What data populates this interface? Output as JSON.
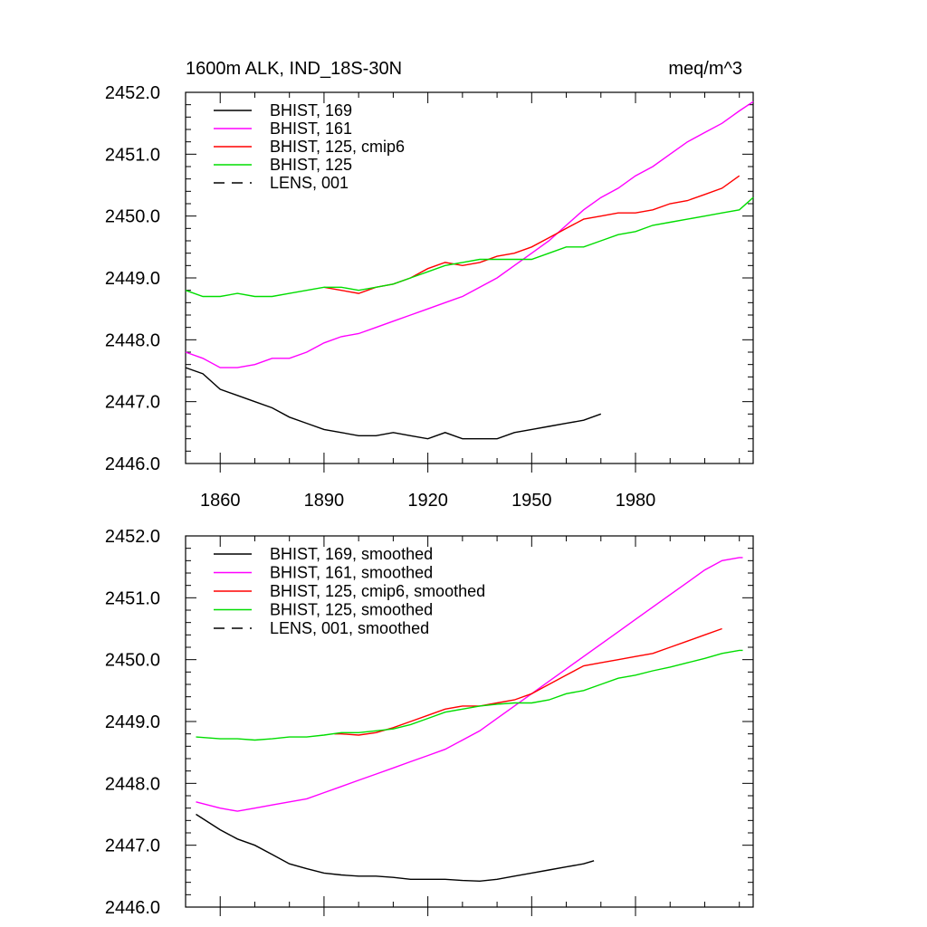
{
  "chart_data": [
    {
      "type": "line",
      "title_left": "1600m ALK, IND_18S-30N",
      "title_right": "meq/m^3",
      "xlabel": "",
      "ylabel": "",
      "xlim": [
        1850,
        2014
      ],
      "ylim": [
        2446.0,
        2452.0
      ],
      "x_ticks": [
        1860,
        1890,
        1920,
        1950,
        1980
      ],
      "x_tick_labels": [
        "1860",
        "1890",
        "1920",
        "1950",
        "1980"
      ],
      "y_ticks": [
        2446.0,
        2447.0,
        2448.0,
        2449.0,
        2450.0,
        2451.0,
        2452.0
      ],
      "y_tick_labels": [
        "2446.0",
        "2447.0",
        "2448.0",
        "2449.0",
        "2450.0",
        "2451.0",
        "2452.0"
      ],
      "grid": false,
      "legend_position": "top-left",
      "legend": [
        {
          "label": "BHIST, 169",
          "color": "#000000",
          "dash": "solid"
        },
        {
          "label": "BHIST, 161",
          "color": "#ff00ff",
          "dash": "solid"
        },
        {
          "label": "BHIST, 125, cmip6",
          "color": "#ff0000",
          "dash": "solid"
        },
        {
          "label": "BHIST, 125",
          "color": "#00dd00",
          "dash": "solid"
        },
        {
          "label": "LENS, 001",
          "color": "#000000",
          "dash": "dashed"
        }
      ],
      "series": [
        {
          "color": "#000000",
          "x": [
            1850,
            1855,
            1860,
            1865,
            1870,
            1875,
            1880,
            1885,
            1890,
            1895,
            1900,
            1905,
            1910,
            1915,
            1920,
            1925,
            1930,
            1935,
            1940,
            1945,
            1950,
            1955,
            1960,
            1965,
            1970
          ],
          "y": [
            2447.55,
            2447.45,
            2447.2,
            2447.1,
            2447.0,
            2446.9,
            2446.75,
            2446.65,
            2446.55,
            2446.5,
            2446.45,
            2446.45,
            2446.5,
            2446.45,
            2446.4,
            2446.5,
            2446.4,
            2446.4,
            2446.4,
            2446.5,
            2446.55,
            2446.6,
            2446.65,
            2446.7,
            2446.8
          ]
        },
        {
          "color": "#ff00ff",
          "x": [
            1850,
            1855,
            1860,
            1865,
            1870,
            1875,
            1880,
            1885,
            1890,
            1895,
            1900,
            1905,
            1910,
            1915,
            1920,
            1925,
            1930,
            1935,
            1940,
            1945,
            1950,
            1955,
            1960,
            1965,
            1970,
            1975,
            1980,
            1985,
            1990,
            1995,
            2000,
            2005,
            2010,
            2014
          ],
          "y": [
            2447.8,
            2447.7,
            2447.55,
            2447.55,
            2447.6,
            2447.7,
            2447.7,
            2447.8,
            2447.95,
            2448.05,
            2448.1,
            2448.2,
            2448.3,
            2448.4,
            2448.5,
            2448.6,
            2448.7,
            2448.85,
            2449.0,
            2449.2,
            2449.4,
            2449.6,
            2449.85,
            2450.1,
            2450.3,
            2450.45,
            2450.65,
            2450.8,
            2451.0,
            2451.2,
            2451.35,
            2451.5,
            2451.7,
            2451.85
          ]
        },
        {
          "color": "#ff0000",
          "x": [
            1890,
            1895,
            1900,
            1905,
            1910,
            1915,
            1920,
            1925,
            1930,
            1935,
            1940,
            1945,
            1950,
            1955,
            1960,
            1965,
            1970,
            1975,
            1980,
            1985,
            1990,
            1995,
            2000,
            2005,
            2010
          ],
          "y": [
            2448.85,
            2448.8,
            2448.75,
            2448.85,
            2448.9,
            2449.0,
            2449.15,
            2449.25,
            2449.2,
            2449.25,
            2449.35,
            2449.4,
            2449.5,
            2449.65,
            2449.8,
            2449.95,
            2450.0,
            2450.05,
            2450.05,
            2450.1,
            2450.2,
            2450.25,
            2450.35,
            2450.45,
            2450.65
          ]
        },
        {
          "color": "#00dd00",
          "x": [
            1850,
            1855,
            1860,
            1865,
            1870,
            1875,
            1880,
            1885,
            1890,
            1895,
            1900,
            1905,
            1910,
            1915,
            1920,
            1925,
            1930,
            1935,
            1940,
            1945,
            1950,
            1955,
            1960,
            1965,
            1970,
            1975,
            1980,
            1985,
            1990,
            1995,
            2000,
            2005,
            2010,
            2014
          ],
          "y": [
            2448.8,
            2448.7,
            2448.7,
            2448.75,
            2448.7,
            2448.7,
            2448.75,
            2448.8,
            2448.85,
            2448.85,
            2448.8,
            2448.85,
            2448.9,
            2449.0,
            2449.1,
            2449.2,
            2449.25,
            2449.3,
            2449.3,
            2449.3,
            2449.3,
            2449.4,
            2449.5,
            2449.5,
            2449.6,
            2449.7,
            2449.75,
            2449.85,
            2449.9,
            2449.95,
            2450.0,
            2450.05,
            2450.1,
            2450.3
          ]
        }
      ]
    },
    {
      "type": "line",
      "xlabel": "",
      "ylabel": "",
      "xlim": [
        1850,
        2014
      ],
      "ylim": [
        2446.0,
        2452.0
      ],
      "x_ticks": [
        1860,
        1890,
        1920,
        1950,
        1980
      ],
      "y_ticks": [
        2446.0,
        2447.0,
        2448.0,
        2449.0,
        2450.0,
        2451.0,
        2452.0
      ],
      "y_tick_labels": [
        "2446.0",
        "2447.0",
        "2448.0",
        "2449.0",
        "2450.0",
        "2451.0",
        "2452.0"
      ],
      "grid": false,
      "legend_position": "top-left",
      "legend": [
        {
          "label": "BHIST, 169, smoothed",
          "color": "#000000",
          "dash": "solid"
        },
        {
          "label": "BHIST, 161, smoothed",
          "color": "#ff00ff",
          "dash": "solid"
        },
        {
          "label": "BHIST, 125, cmip6, smoothed",
          "color": "#ff0000",
          "dash": "solid"
        },
        {
          "label": "BHIST, 125, smoothed",
          "color": "#00dd00",
          "dash": "solid"
        },
        {
          "label": "LENS, 001, smoothed",
          "color": "#000000",
          "dash": "dashed"
        }
      ],
      "series": [
        {
          "color": "#000000",
          "x": [
            1853,
            1860,
            1865,
            1870,
            1875,
            1880,
            1885,
            1890,
            1895,
            1900,
            1905,
            1910,
            1915,
            1920,
            1925,
            1930,
            1935,
            1940,
            1945,
            1950,
            1955,
            1960,
            1965,
            1968
          ],
          "y": [
            2447.5,
            2447.25,
            2447.1,
            2447.0,
            2446.85,
            2446.7,
            2446.62,
            2446.55,
            2446.52,
            2446.5,
            2446.5,
            2446.48,
            2446.45,
            2446.45,
            2446.45,
            2446.43,
            2446.42,
            2446.45,
            2446.5,
            2446.55,
            2446.6,
            2446.65,
            2446.7,
            2446.75
          ]
        },
        {
          "color": "#ff00ff",
          "x": [
            1853,
            1860,
            1865,
            1870,
            1875,
            1880,
            1885,
            1890,
            1895,
            1900,
            1905,
            1910,
            1915,
            1920,
            1925,
            1930,
            1935,
            1940,
            1945,
            1950,
            1955,
            1960,
            1965,
            1970,
            1975,
            1980,
            1985,
            1990,
            1995,
            2000,
            2005,
            2010,
            2011
          ],
          "y": [
            2447.7,
            2447.6,
            2447.55,
            2447.6,
            2447.65,
            2447.7,
            2447.75,
            2447.85,
            2447.95,
            2448.05,
            2448.15,
            2448.25,
            2448.35,
            2448.45,
            2448.55,
            2448.7,
            2448.85,
            2449.05,
            2449.25,
            2449.45,
            2449.65,
            2449.85,
            2450.05,
            2450.25,
            2450.45,
            2450.65,
            2450.85,
            2451.05,
            2451.25,
            2451.45,
            2451.6,
            2451.65,
            2451.65
          ]
        },
        {
          "color": "#ff0000",
          "x": [
            1893,
            1895,
            1900,
            1905,
            1910,
            1915,
            1920,
            1925,
            1930,
            1935,
            1940,
            1945,
            1950,
            1955,
            1960,
            1965,
            1970,
            1975,
            1980,
            1985,
            1990,
            1995,
            2000,
            2005
          ],
          "y": [
            2448.8,
            2448.8,
            2448.78,
            2448.82,
            2448.9,
            2449.0,
            2449.1,
            2449.2,
            2449.25,
            2449.25,
            2449.3,
            2449.35,
            2449.45,
            2449.6,
            2449.75,
            2449.9,
            2449.95,
            2450.0,
            2450.05,
            2450.1,
            2450.2,
            2450.3,
            2450.4,
            2450.5
          ]
        },
        {
          "color": "#00dd00",
          "x": [
            1853,
            1860,
            1865,
            1870,
            1875,
            1880,
            1885,
            1890,
            1895,
            1900,
            1905,
            1910,
            1915,
            1920,
            1925,
            1930,
            1935,
            1940,
            1945,
            1950,
            1955,
            1960,
            1965,
            1970,
            1975,
            1980,
            1985,
            1990,
            1995,
            2000,
            2005,
            2010,
            2011
          ],
          "y": [
            2448.75,
            2448.72,
            2448.72,
            2448.7,
            2448.72,
            2448.75,
            2448.75,
            2448.78,
            2448.82,
            2448.82,
            2448.85,
            2448.88,
            2448.95,
            2449.05,
            2449.15,
            2449.2,
            2449.25,
            2449.28,
            2449.3,
            2449.3,
            2449.35,
            2449.45,
            2449.5,
            2449.6,
            2449.7,
            2449.75,
            2449.82,
            2449.88,
            2449.95,
            2450.02,
            2450.1,
            2450.15,
            2450.15
          ]
        }
      ]
    }
  ]
}
